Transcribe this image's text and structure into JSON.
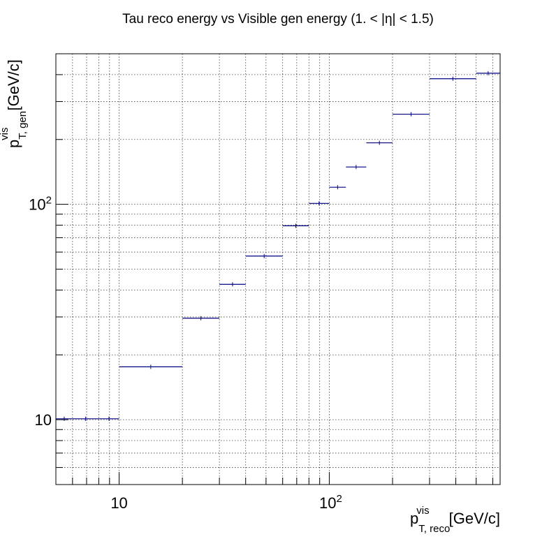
{
  "chart_data": {
    "type": "scatter",
    "title": "Tau reco energy vs Visible gen energy (1. < |η| < 1.5)",
    "xlabel": {
      "main": "p",
      "superscript": "vis",
      "subscript": "T, reco",
      "unit": "[GeV/c]"
    },
    "ylabel": {
      "main": "p",
      "superscript": "vis",
      "subscript": "T, gen",
      "unit": "[GeV/c]"
    },
    "xscale": "log",
    "yscale": "log",
    "xlim": [
      5,
      650
    ],
    "ylim": [
      5,
      500
    ],
    "grid": true,
    "x_tick_labels": [
      {
        "value": 10,
        "label": "10"
      },
      {
        "value": 100,
        "label": "10",
        "exponent": "2"
      }
    ],
    "y_tick_labels": [
      {
        "value": 10,
        "label": "10"
      },
      {
        "value": 100,
        "label": "10",
        "exponent": "2"
      }
    ],
    "series": [
      {
        "color": "#000080",
        "points": [
          {
            "x_low": 5,
            "x_high": 6,
            "y": 10.1
          },
          {
            "x_low": 6,
            "x_high": 8,
            "y": 10.1
          },
          {
            "x_low": 8,
            "x_high": 10,
            "y": 10.1
          },
          {
            "x_low": 10,
            "x_high": 20,
            "y": 17.6
          },
          {
            "x_low": 20,
            "x_high": 30,
            "y": 29.6
          },
          {
            "x_low": 30,
            "x_high": 40,
            "y": 42.5
          },
          {
            "x_low": 40,
            "x_high": 60,
            "y": 57.5
          },
          {
            "x_low": 60,
            "x_high": 80,
            "y": 79.5
          },
          {
            "x_low": 80,
            "x_high": 100,
            "y": 101
          },
          {
            "x_low": 100,
            "x_high": 120,
            "y": 120
          },
          {
            "x_low": 120,
            "x_high": 150,
            "y": 149
          },
          {
            "x_low": 150,
            "x_high": 200,
            "y": 193
          },
          {
            "x_low": 200,
            "x_high": 300,
            "y": 262
          },
          {
            "x_low": 300,
            "x_high": 500,
            "y": 383
          },
          {
            "x_low": 500,
            "x_high": 650,
            "y": 406
          }
        ]
      }
    ]
  }
}
